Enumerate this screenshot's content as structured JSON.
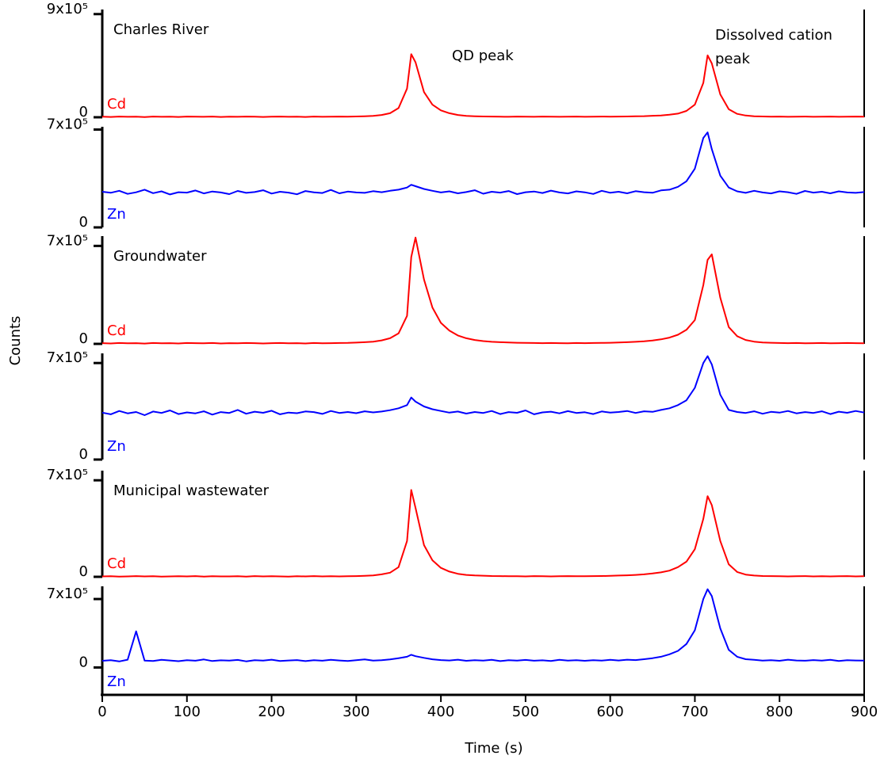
{
  "chart_data": {
    "type": "line",
    "xlabel": "Time (s)",
    "ylabel": "Counts",
    "xlim": [
      0,
      900
    ],
    "xticks": [
      0,
      100,
      200,
      300,
      400,
      500,
      600,
      700,
      800,
      900
    ],
    "annotations": [
      "QD peak",
      "Dissolved cation peak"
    ],
    "x": [
      0,
      10,
      20,
      30,
      40,
      50,
      60,
      70,
      80,
      90,
      100,
      110,
      120,
      130,
      140,
      150,
      160,
      170,
      180,
      190,
      200,
      210,
      220,
      230,
      240,
      250,
      260,
      270,
      280,
      290,
      300,
      310,
      320,
      330,
      340,
      350,
      360,
      365,
      370,
      380,
      390,
      400,
      410,
      420,
      430,
      440,
      450,
      460,
      470,
      480,
      490,
      500,
      510,
      520,
      530,
      540,
      550,
      560,
      570,
      580,
      590,
      600,
      610,
      620,
      630,
      640,
      650,
      660,
      670,
      680,
      690,
      700,
      710,
      715,
      720,
      730,
      740,
      750,
      760,
      770,
      780,
      790,
      800,
      810,
      820,
      830,
      840,
      850,
      860,
      870,
      880,
      890,
      900
    ],
    "panels": [
      {
        "title": "Charles River",
        "ylim": [
          0,
          940000
        ],
        "yticks": [
          0,
          {
            "value": 900000,
            "label": "9x10⁵"
          }
        ],
        "series": [
          {
            "name": "Cd",
            "color": "#ff0000",
            "values": [
              5000,
              3000,
              6000,
              4000,
              5000,
              2000,
              6000,
              4000,
              5000,
              3000,
              6000,
              5000,
              4000,
              6000,
              3000,
              5000,
              4000,
              6000,
              5000,
              3000,
              5000,
              6000,
              4000,
              5000,
              3000,
              6000,
              4000,
              5000,
              6000,
              5000,
              7000,
              9000,
              12000,
              20000,
              35000,
              80000,
              250000,
              550000,
              480000,
              220000,
              110000,
              60000,
              35000,
              20000,
              12000,
              9000,
              7000,
              6000,
              5000,
              4000,
              6000,
              5000,
              4000,
              6000,
              5000,
              4000,
              5000,
              6000,
              4000,
              5000,
              6000,
              5000,
              6000,
              7000,
              9000,
              10000,
              13000,
              16000,
              22000,
              32000,
              55000,
              110000,
              300000,
              540000,
              470000,
              200000,
              70000,
              30000,
              15000,
              9000,
              7000,
              5000,
              6000,
              4000,
              5000,
              6000,
              4000,
              5000,
              6000,
              4000,
              5000,
              6000,
              5000
            ]
          }
        ]
      },
      {
        "ylim": [
          0,
          720000
        ],
        "yticks": [
          0,
          {
            "value": 700000,
            "label": "7x10⁵"
          }
        ],
        "series": [
          {
            "name": "Zn",
            "color": "#0000ff",
            "values": [
              255000,
              248000,
              262000,
              240000,
              251000,
              270000,
              245000,
              258000,
              236000,
              252000,
              249000,
              264000,
              243000,
              257000,
              250000,
              238000,
              261000,
              247000,
              253000,
              266000,
              242000,
              255000,
              249000,
              237000,
              260000,
              251000,
              246000,
              268000,
              244000,
              256000,
              250000,
              247000,
              259000,
              252000,
              262000,
              270000,
              285000,
              305000,
              295000,
              275000,
              262000,
              250000,
              258000,
              244000,
              253000,
              266000,
              241000,
              255000,
              249000,
              260000,
              238000,
              252000,
              257000,
              246000,
              263000,
              250000,
              243000,
              258000,
              251000,
              239000,
              262000,
              248000,
              255000,
              244000,
              259000,
              252000,
              248000,
              265000,
              270000,
              290000,
              330000,
              420000,
              640000,
              680000,
              560000,
              370000,
              285000,
              258000,
              247000,
              262000,
              250000,
              243000,
              258000,
              252000,
              240000,
              261000,
              249000,
              255000,
              244000,
              258000,
              250000,
              247000,
              253000
            ]
          }
        ]
      },
      {
        "title": "Groundwater",
        "ylim": [
          0,
          770000
        ],
        "yticks": [
          0,
          {
            "value": 700000,
            "label": "7x10⁵"
          }
        ],
        "series": [
          {
            "name": "Cd",
            "color": "#ff0000",
            "values": [
              5000,
              3000,
              6000,
              4000,
              5000,
              2000,
              6000,
              4000,
              5000,
              3000,
              6000,
              5000,
              4000,
              6000,
              3000,
              5000,
              4000,
              6000,
              5000,
              3000,
              5000,
              6000,
              4000,
              5000,
              3000,
              6000,
              4000,
              5000,
              6000,
              7000,
              9000,
              12000,
              16000,
              25000,
              40000,
              75000,
              200000,
              620000,
              760000,
              460000,
              260000,
              150000,
              95000,
              60000,
              40000,
              28000,
              20000,
              15000,
              12000,
              10000,
              8000,
              7000,
              6000,
              5000,
              6000,
              5000,
              4000,
              6000,
              5000,
              6000,
              7000,
              8000,
              10000,
              12000,
              15000,
              18000,
              24000,
              32000,
              45000,
              65000,
              100000,
              170000,
              420000,
              600000,
              640000,
              330000,
              120000,
              55000,
              28000,
              16000,
              10000,
              8000,
              6000,
              5000,
              6000,
              4000,
              5000,
              6000,
              4000,
              5000,
              6000,
              5000,
              4000
            ]
          }
        ]
      },
      {
        "ylim": [
          0,
          770000
        ],
        "yticks": [
          0,
          {
            "value": 700000,
            "label": "7x10⁵"
          }
        ],
        "series": [
          {
            "name": "Zn",
            "color": "#0000ff",
            "values": [
              340000,
              328000,
              352000,
              335000,
              345000,
              322000,
              348000,
              338000,
              356000,
              330000,
              342000,
              335000,
              350000,
              326000,
              344000,
              338000,
              360000,
              332000,
              347000,
              339000,
              354000,
              328000,
              341000,
              336000,
              349000,
              344000,
              331000,
              352000,
              338000,
              345000,
              336000,
              350000,
              342000,
              348000,
              358000,
              372000,
              395000,
              450000,
              420000,
              385000,
              365000,
              352000,
              340000,
              348000,
              333000,
              345000,
              338000,
              352000,
              330000,
              344000,
              339000,
              356000,
              328000,
              342000,
              347000,
              335000,
              351000,
              338000,
              343000,
              330000,
              349000,
              340000,
              345000,
              352000,
              338000,
              350000,
              346000,
              360000,
              372000,
              395000,
              430000,
              520000,
              700000,
              750000,
              690000,
              470000,
              360000,
              345000,
              338000,
              350000,
              332000,
              346000,
              340000,
              352000,
              335000,
              344000,
              338000,
              350000,
              330000,
              347000,
              339000,
              352000,
              341000
            ]
          }
        ]
      },
      {
        "title": "Municipal wastewater",
        "ylim": [
          0,
          770000
        ],
        "yticks": [
          0,
          {
            "value": 700000,
            "label": "7x10⁵"
          }
        ],
        "series": [
          {
            "name": "Cd",
            "color": "#ff0000",
            "values": [
              3000,
              4000,
              2000,
              3000,
              5000,
              3000,
              4000,
              2000,
              3000,
              4000,
              3000,
              5000,
              2000,
              4000,
              3000,
              3000,
              4000,
              2000,
              5000,
              3000,
              4000,
              3000,
              2000,
              4000,
              3000,
              5000,
              3000,
              4000,
              3000,
              4000,
              5000,
              7000,
              10000,
              18000,
              30000,
              70000,
              260000,
              630000,
              500000,
              230000,
              120000,
              65000,
              38000,
              22000,
              14000,
              10000,
              8000,
              6000,
              5000,
              4000,
              4000,
              3000,
              5000,
              4000,
              3000,
              4000,
              5000,
              4000,
              4000,
              5000,
              6000,
              7000,
              9000,
              11000,
              14000,
              18000,
              24000,
              32000,
              45000,
              70000,
              110000,
              200000,
              420000,
              585000,
              520000,
              260000,
              90000,
              35000,
              16000,
              9000,
              6000,
              5000,
              4000,
              3000,
              4000,
              5000,
              3000,
              4000,
              3000,
              4000,
              5000,
              3000,
              4000
            ]
          }
        ]
      },
      {
        "ylim": [
          -280000,
          830000
        ],
        "yticks": [
          0,
          {
            "value": 700000,
            "label": "7x10⁵"
          }
        ],
        "series": [
          {
            "name": "Zn",
            "color": "#0000ff",
            "values": [
              68000,
              75000,
              62000,
              80000,
              370000,
              70000,
              66000,
              78000,
              72000,
              64000,
              75000,
              69000,
              82000,
              66000,
              73000,
              70000,
              77000,
              63000,
              74000,
              71000,
              80000,
              67000,
              72000,
              76000,
              65000,
              74000,
              69000,
              78000,
              72000,
              66000,
              75000,
              83000,
              70000,
              74000,
              82000,
              95000,
              110000,
              130000,
              115000,
              98000,
              84000,
              76000,
              72000,
              80000,
              68000,
              75000,
              71000,
              78000,
              65000,
              74000,
              70000,
              77000,
              69000,
              73000,
              67000,
              79000,
              71000,
              75000,
              68000,
              74000,
              70000,
              78000,
              72000,
              80000,
              76000,
              85000,
              95000,
              110000,
              135000,
              170000,
              240000,
              380000,
              700000,
              800000,
              730000,
              400000,
              180000,
              110000,
              85000,
              78000,
              70000,
              75000,
              68000,
              80000,
              72000,
              69000,
              76000,
              71000,
              78000,
              67000,
              74000,
              72000,
              70000
            ]
          }
        ]
      }
    ]
  }
}
